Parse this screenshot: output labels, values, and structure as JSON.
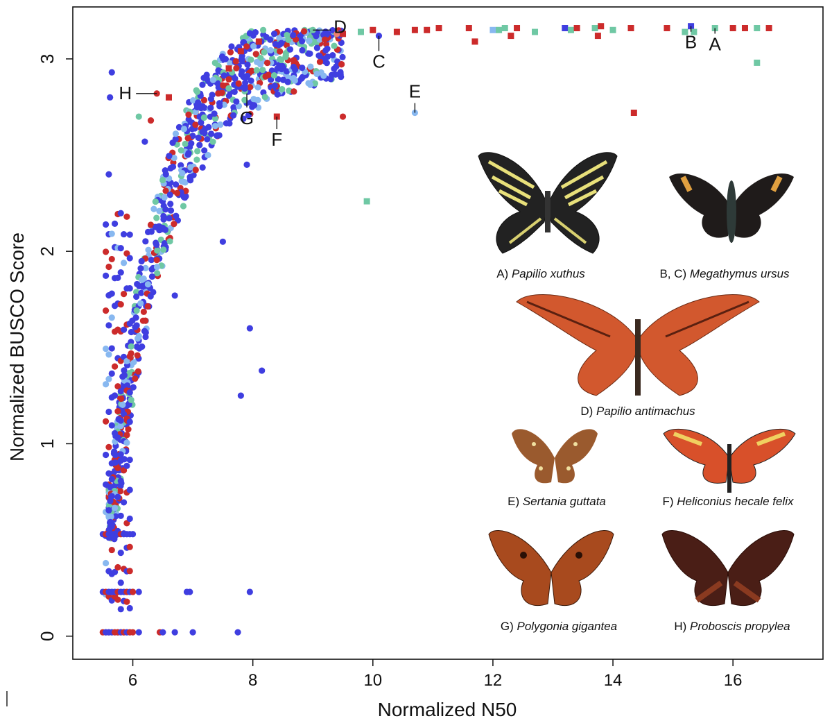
{
  "chart_data": {
    "type": "scatter",
    "xlabel": "Normalized N50",
    "ylabel": "Normalized BUSCO Score",
    "xlim": [
      5.0,
      17.5
    ],
    "ylim": [
      -0.12,
      3.27
    ],
    "x_ticks": [
      "6",
      "8",
      "10",
      "12",
      "14",
      "16"
    ],
    "y_ticks": [
      "0",
      "1",
      "2",
      "3"
    ],
    "colors": {
      "red": "#cc2b2b",
      "blue": "#3f3ee0",
      "light_blue": "#88b8f0",
      "teal": "#6fc8a4",
      "salmon": "#f08070"
    },
    "squares": [
      [
        9.5,
        3.13,
        "red"
      ],
      [
        9.8,
        3.14,
        "teal"
      ],
      [
        10.0,
        3.15,
        "red"
      ],
      [
        10.4,
        3.14,
        "red"
      ],
      [
        10.7,
        3.15,
        "red"
      ],
      [
        10.9,
        3.15,
        "red"
      ],
      [
        11.1,
        3.16,
        "red"
      ],
      [
        11.6,
        3.16,
        "red"
      ],
      [
        11.7,
        3.09,
        "red"
      ],
      [
        12.0,
        3.15,
        "light_blue"
      ],
      [
        12.1,
        3.15,
        "teal"
      ],
      [
        12.2,
        3.16,
        "teal"
      ],
      [
        12.3,
        3.12,
        "red"
      ],
      [
        12.4,
        3.16,
        "red"
      ],
      [
        12.7,
        3.14,
        "teal"
      ],
      [
        13.2,
        3.16,
        "blue"
      ],
      [
        13.3,
        3.15,
        "teal"
      ],
      [
        13.4,
        3.16,
        "red"
      ],
      [
        13.7,
        3.16,
        "teal"
      ],
      [
        13.75,
        3.12,
        "red"
      ],
      [
        13.8,
        3.17,
        "red"
      ],
      [
        14.0,
        3.15,
        "teal"
      ],
      [
        14.3,
        3.16,
        "red"
      ],
      [
        14.9,
        3.16,
        "red"
      ],
      [
        15.2,
        3.14,
        "teal"
      ],
      [
        15.3,
        3.17,
        "blue"
      ],
      [
        15.35,
        3.14,
        "teal"
      ],
      [
        15.7,
        3.16,
        "teal"
      ],
      [
        16.0,
        3.16,
        "red"
      ],
      [
        16.2,
        3.16,
        "red"
      ],
      [
        16.4,
        3.16,
        "teal"
      ],
      [
        16.6,
        3.16,
        "red"
      ],
      [
        16.4,
        2.98,
        "teal"
      ],
      [
        14.35,
        2.72,
        "red"
      ],
      [
        8.4,
        2.7,
        "red"
      ],
      [
        9.9,
        2.26,
        "teal"
      ],
      [
        6.6,
        2.8,
        "red"
      ],
      [
        8.1,
        3.09,
        "red"
      ],
      [
        7.8,
        3.04,
        "red"
      ],
      [
        7.6,
        2.95,
        "red"
      ]
    ],
    "circles": [
      [
        9.2,
        3.1,
        "red"
      ],
      [
        9.0,
        3.15,
        "teal"
      ],
      [
        9.4,
        3.13,
        "salmon"
      ],
      [
        10.1,
        3.12,
        "blue"
      ],
      [
        10.7,
        2.72,
        "light_blue"
      ],
      [
        9.5,
        2.7,
        "red"
      ],
      [
        6.4,
        2.82,
        "red"
      ],
      [
        6.1,
        2.7,
        "teal"
      ],
      [
        6.3,
        2.68,
        "red"
      ],
      [
        7.9,
        2.45,
        "blue"
      ],
      [
        7.5,
        2.05,
        "blue"
      ],
      [
        6.7,
        1.77,
        "blue"
      ],
      [
        7.95,
        1.6,
        "blue"
      ],
      [
        8.15,
        1.38,
        "blue"
      ],
      [
        7.8,
        1.25,
        "blue"
      ],
      [
        5.65,
        2.93,
        "blue"
      ],
      [
        5.62,
        2.8,
        "blue"
      ],
      [
        5.6,
        2.4,
        "blue"
      ],
      [
        6.2,
        2.57,
        "blue"
      ],
      [
        6.9,
        0.23,
        "blue"
      ],
      [
        6.95,
        0.23,
        "blue"
      ],
      [
        7.95,
        0.23,
        "blue"
      ],
      [
        6.45,
        0.02,
        "red"
      ],
      [
        6.5,
        0.02,
        "blue"
      ],
      [
        6.7,
        0.02,
        "blue"
      ],
      [
        7.0,
        0.02,
        "blue"
      ],
      [
        7.75,
        0.02,
        "blue"
      ],
      [
        6.1,
        0.02,
        "blue"
      ],
      [
        6.1,
        0.23,
        "blue"
      ],
      [
        6.0,
        0.23,
        "red"
      ]
    ],
    "annotations": [
      {
        "label": "A",
        "x": 15.7,
        "y": 3.16
      },
      {
        "label": "B",
        "x": 15.3,
        "y": 3.17
      },
      {
        "label": "C",
        "x": 10.1,
        "y": 3.12
      },
      {
        "label": "D",
        "x": 9.0,
        "y": 3.15
      },
      {
        "label": "E",
        "x": 10.7,
        "y": 2.72
      },
      {
        "label": "F",
        "x": 8.4,
        "y": 2.7
      },
      {
        "label": "G",
        "x": 7.9,
        "y": 2.82
      },
      {
        "label": "H",
        "x": 6.4,
        "y": 2.82
      }
    ],
    "inset_captions": [
      {
        "id": "A",
        "prefix": "A) ",
        "name": "Papilio xuthus"
      },
      {
        "id": "BC",
        "prefix": "B, C) ",
        "name": "Megathymus ursus"
      },
      {
        "id": "D",
        "prefix": "D) ",
        "name": "Papilio antimachus"
      },
      {
        "id": "E",
        "prefix": "E) ",
        "name": "Sertania guttata"
      },
      {
        "id": "F",
        "prefix": "F) ",
        "name": "Heliconius hecale felix"
      },
      {
        "id": "G",
        "prefix": "G) ",
        "name": "Polygonia gigantea"
      },
      {
        "id": "H",
        "prefix": "H) ",
        "name": "Proboscis propylea"
      }
    ]
  }
}
